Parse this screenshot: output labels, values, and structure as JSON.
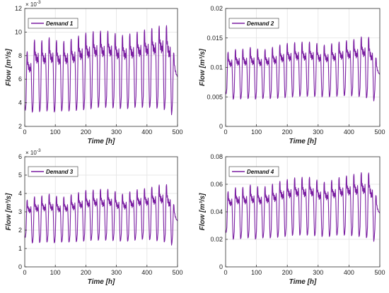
{
  "chart_data": [
    {
      "type": "line",
      "panel": "demand-1",
      "legend_entry": "Demand 1",
      "legend_position": "top-left",
      "xlabel": "Time [h]",
      "ylabel": "Flow [m³/s]",
      "scale_note": "×10⁻³",
      "xlim": [
        0,
        500
      ],
      "ylim": [
        2,
        12
      ],
      "xticks": [
        0,
        100,
        200,
        300,
        400,
        500
      ],
      "yticks": [
        2,
        4,
        6,
        8,
        10,
        12
      ],
      "grid": true,
      "color": "#7b1fa2",
      "series": [
        {
          "name": "Demand 1",
          "pattern": "periodic daily demand (24 h), ~21 cycles",
          "x": [
            0,
            3,
            8,
            14,
            20,
            24,
            40,
            60,
            80,
            100,
            120,
            140,
            160,
            180,
            200,
            220,
            240,
            260,
            280,
            300,
            320,
            340,
            360,
            380,
            400,
            420,
            440,
            460,
            480,
            500
          ],
          "peak": [
            8.4,
            8.4,
            8.4,
            8.4,
            8.4,
            9.3,
            9.5,
            9.3,
            9.6,
            9.4,
            9.2,
            9.4,
            9.5,
            9.8,
            10.0,
            10.1,
            10.2,
            10.1,
            10.2,
            9.9,
            9.8,
            9.9,
            10.0,
            10.2,
            10.3,
            10.4,
            10.6,
            10.8,
            10.0,
            9.0
          ],
          "trough": [
            3.6,
            3.1,
            3.1,
            3.1,
            3.1,
            3.2,
            3.2,
            3.3,
            3.3,
            3.2,
            3.3,
            3.3,
            3.3,
            3.4,
            3.4,
            3.5,
            3.6,
            3.6,
            3.6,
            3.5,
            3.5,
            3.5,
            3.6,
            3.6,
            3.6,
            3.6,
            3.5,
            3.4,
            2.9,
            2.9
          ],
          "end_value": 6.2
        }
      ]
    },
    {
      "type": "line",
      "panel": "demand-2",
      "legend_entry": "Demand 2",
      "legend_position": "top-left",
      "xlabel": "Time [h]",
      "ylabel": "Flow [m³/s]",
      "xlim": [
        0,
        500
      ],
      "ylim": [
        0,
        0.02
      ],
      "xticks": [
        0,
        100,
        200,
        300,
        400,
        500
      ],
      "yticks": [
        0,
        0.005,
        0.01,
        0.015,
        0.02
      ],
      "grid": true,
      "color": "#7b1fa2",
      "series": [
        {
          "name": "Demand 2",
          "pattern": "periodic daily demand (24 h), ~21 cycles",
          "x": [
            0,
            24,
            40,
            60,
            80,
            100,
            120,
            140,
            160,
            180,
            200,
            220,
            240,
            260,
            280,
            300,
            320,
            340,
            360,
            380,
            400,
            420,
            440,
            460,
            480,
            500
          ],
          "peak": [
            0.0125,
            0.013,
            0.0133,
            0.0132,
            0.0135,
            0.0133,
            0.013,
            0.0134,
            0.0136,
            0.014,
            0.0142,
            0.0143,
            0.0145,
            0.0143,
            0.0145,
            0.0141,
            0.0139,
            0.0141,
            0.0143,
            0.0146,
            0.0147,
            0.0149,
            0.0153,
            0.0155,
            0.0142,
            0.0125
          ],
          "trough": [
            0.0055,
            0.0046,
            0.0046,
            0.0047,
            0.0047,
            0.0046,
            0.0047,
            0.0047,
            0.0047,
            0.0048,
            0.0049,
            0.005,
            0.0051,
            0.0051,
            0.0051,
            0.005,
            0.005,
            0.005,
            0.0051,
            0.0052,
            0.0052,
            0.0051,
            0.005,
            0.0048,
            0.0042,
            0.0042
          ],
          "end_value": 0.0088
        }
      ]
    },
    {
      "type": "line",
      "panel": "demand-3",
      "legend_entry": "Demand 3",
      "legend_position": "top-left",
      "xlabel": "Time [h]",
      "ylabel": "Flow [m³/s]",
      "scale_note": "×10⁻³",
      "xlim": [
        0,
        500
      ],
      "ylim": [
        0,
        6
      ],
      "xticks": [
        0,
        100,
        200,
        300,
        400,
        500
      ],
      "yticks": [
        0,
        1,
        2,
        3,
        4,
        5,
        6
      ],
      "grid": true,
      "color": "#7b1fa2",
      "series": [
        {
          "name": "Demand 3",
          "pattern": "periodic daily demand (24 h), ~21 cycles",
          "x": [
            0,
            24,
            40,
            60,
            80,
            100,
            120,
            140,
            160,
            180,
            200,
            220,
            240,
            260,
            280,
            300,
            320,
            340,
            360,
            380,
            400,
            420,
            440,
            460,
            480,
            500
          ],
          "peak": [
            3.6,
            3.8,
            3.9,
            3.9,
            4.0,
            3.9,
            3.8,
            3.9,
            4.0,
            4.1,
            4.2,
            4.2,
            4.3,
            4.2,
            4.3,
            4.1,
            4.0,
            4.1,
            4.2,
            4.3,
            4.3,
            4.4,
            4.5,
            4.6,
            4.2,
            3.7
          ],
          "trough": [
            1.6,
            1.3,
            1.3,
            1.35,
            1.35,
            1.3,
            1.35,
            1.35,
            1.35,
            1.4,
            1.4,
            1.45,
            1.45,
            1.45,
            1.45,
            1.4,
            1.4,
            1.4,
            1.45,
            1.5,
            1.5,
            1.45,
            1.4,
            1.35,
            1.15,
            1.15
          ],
          "end_value": 2.5
        }
      ]
    },
    {
      "type": "line",
      "panel": "demand-4",
      "legend_entry": "Demand 4",
      "legend_position": "top-left",
      "xlabel": "Time [h]",
      "ylabel": "Flow [m³/s]",
      "xlim": [
        0,
        500
      ],
      "ylim": [
        0,
        0.08
      ],
      "xticks": [
        0,
        100,
        200,
        300,
        400,
        500
      ],
      "yticks": [
        0,
        0.02,
        0.04,
        0.06,
        0.08
      ],
      "grid": true,
      "color": "#7b1fa2",
      "series": [
        {
          "name": "Demand 4",
          "pattern": "periodic daily demand (24 h), ~21 cycles",
          "x": [
            0,
            24,
            40,
            60,
            80,
            100,
            120,
            140,
            160,
            180,
            200,
            220,
            240,
            260,
            280,
            300,
            320,
            340,
            360,
            380,
            400,
            420,
            440,
            460,
            480,
            500
          ],
          "peak": [
            0.054,
            0.057,
            0.059,
            0.058,
            0.06,
            0.059,
            0.058,
            0.06,
            0.061,
            0.063,
            0.064,
            0.065,
            0.066,
            0.065,
            0.066,
            0.063,
            0.062,
            0.063,
            0.065,
            0.066,
            0.067,
            0.068,
            0.069,
            0.07,
            0.064,
            0.055
          ],
          "trough": [
            0.025,
            0.02,
            0.02,
            0.021,
            0.021,
            0.02,
            0.021,
            0.021,
            0.021,
            0.022,
            0.022,
            0.023,
            0.023,
            0.023,
            0.023,
            0.022,
            0.022,
            0.022,
            0.023,
            0.023,
            0.023,
            0.022,
            0.022,
            0.021,
            0.018,
            0.018
          ],
          "end_value": 0.039
        }
      ]
    }
  ],
  "texts": {
    "exponent_base": "× 10",
    "exponent_power": "-3"
  }
}
